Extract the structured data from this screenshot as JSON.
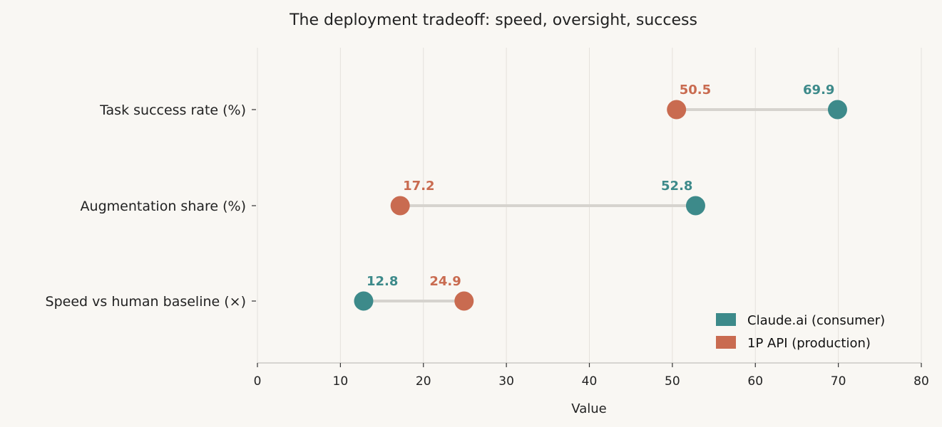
{
  "chart_data": {
    "type": "dumbbell",
    "title": "The deployment tradeoff: speed, oversight, success",
    "xlabel": "Value",
    "ylabel": "",
    "xlim": [
      0,
      80
    ],
    "xticks": [
      0,
      10,
      20,
      30,
      40,
      50,
      60,
      70,
      80
    ],
    "xtick_labels": [
      "0",
      "10",
      "20",
      "30",
      "40",
      "50",
      "60",
      "70",
      "80"
    ],
    "grid": "vertical",
    "legend_position": "bottom-right",
    "categories": [
      "Task success rate (%)",
      "Augmentation share (%)",
      "Speed vs human baseline (×)"
    ],
    "series": [
      {
        "name": "Claude.ai (consumer)",
        "color": "#3d8a8a",
        "values": [
          69.9,
          52.8,
          12.8
        ],
        "labels": [
          "69.9",
          "52.8",
          "12.8"
        ]
      },
      {
        "name": "1P API (production)",
        "color": "#c96b50",
        "values": [
          50.5,
          17.2,
          24.9
        ],
        "labels": [
          "50.5",
          "17.2",
          "24.9"
        ]
      }
    ],
    "connector_color": "#d6d3ce",
    "grid_color": "#e4e1dc",
    "spine_color": "#cccac5"
  }
}
